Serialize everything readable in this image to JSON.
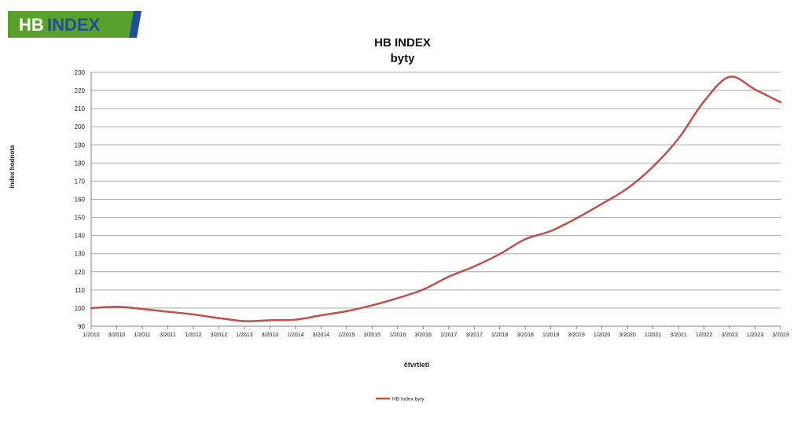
{
  "logo": {
    "text_hb": "HB",
    "text_index": "INDEX",
    "green": "#5aa02c",
    "blue": "#1f4e9a"
  },
  "chart_data": {
    "type": "line",
    "title": "HB INDEX",
    "subtitle": "byty",
    "xlabel": "čtvrtletí",
    "ylabel": "Index hodnota",
    "ylim": [
      90,
      230
    ],
    "yticks": [
      90,
      100,
      110,
      120,
      130,
      140,
      150,
      160,
      170,
      180,
      190,
      200,
      210,
      220,
      230
    ],
    "grid": true,
    "legend_position": "bottom-center",
    "categories": [
      "1/2010",
      "3/2010",
      "1/2011",
      "3/2011",
      "1/2012",
      "3/2012",
      "1/2013",
      "3/2013",
      "1/2014",
      "3/2014",
      "1/2015",
      "3/2015",
      "1/2016",
      "3/2016",
      "1/2017",
      "3/2017",
      "1/2018",
      "3/2018",
      "1/2019",
      "3/2019",
      "1/2020",
      "3/2020",
      "1/2021",
      "3/2021",
      "1/2022",
      "3/2022",
      "1/2023",
      "3/2023"
    ],
    "series": [
      {
        "name": "HB Index byty",
        "color": "#c0504d",
        "values": [
          100,
          100.7,
          99.5,
          98,
          96.5,
          94.5,
          92.8,
          93.3,
          93.6,
          96,
          98.3,
          101.5,
          105.5,
          110.2,
          117.3,
          123,
          129.8,
          138,
          142.5,
          149.5,
          157.5,
          166,
          178,
          193.5,
          214,
          227.5,
          220.5,
          213.5
        ]
      }
    ]
  }
}
